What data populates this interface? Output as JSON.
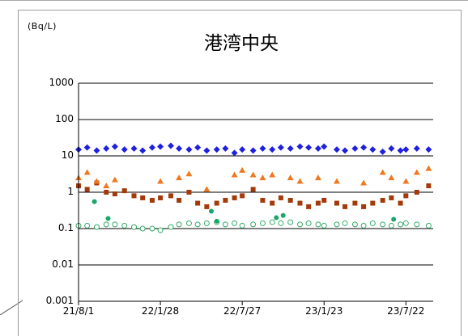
{
  "chart_data": {
    "type": "scatter",
    "title": "港湾中央",
    "unit": "(Bq/L)",
    "y_scale": "log",
    "ylim": [
      0.001,
      1000
    ],
    "yticks": [
      "1000",
      "100",
      "10",
      "1",
      "0.1",
      "0.01",
      "0.001"
    ],
    "xticks": [
      "21/8/1",
      "22/1/28",
      "22/7/27",
      "23/1/23",
      "23/7/22"
    ],
    "xlim": [
      "2021-08-01",
      "2023-09-20"
    ],
    "grid": true,
    "series": [
      {
        "marker": "diamond",
        "color": "#1f1fe0",
        "x": [
          "2021-08-01",
          "2021-08-20",
          "2021-09-10",
          "2021-10-01",
          "2021-10-20",
          "2021-11-10",
          "2021-12-01",
          "2021-12-20",
          "2022-01-10",
          "2022-01-28",
          "2022-02-20",
          "2022-03-10",
          "2022-04-01",
          "2022-04-20",
          "2022-05-10",
          "2022-06-01",
          "2022-06-20",
          "2022-07-10",
          "2022-07-27",
          "2022-08-20",
          "2022-09-10",
          "2022-10-01",
          "2022-10-20",
          "2022-11-10",
          "2022-12-01",
          "2022-12-20",
          "2023-01-10",
          "2023-01-23",
          "2023-02-20",
          "2023-03-10",
          "2023-04-01",
          "2023-04-20",
          "2023-05-10",
          "2023-06-01",
          "2023-06-20",
          "2023-07-10",
          "2023-07-22",
          "2023-08-15",
          "2023-09-10"
        ],
        "values": [
          15,
          17,
          14,
          16,
          18,
          15,
          16,
          14,
          17,
          18,
          19,
          16,
          15,
          17,
          14,
          15,
          16,
          12,
          15,
          14,
          16,
          15,
          17,
          16,
          18,
          17,
          16,
          18,
          15,
          14,
          16,
          17,
          15,
          13,
          16,
          14,
          15,
          16,
          15
        ]
      },
      {
        "marker": "square",
        "color": "#a33a0a",
        "x": [
          "2021-08-01",
          "2021-08-20",
          "2021-09-10",
          "2021-10-01",
          "2021-10-20",
          "2021-11-10",
          "2021-12-01",
          "2021-12-20",
          "2022-01-10",
          "2022-01-28",
          "2022-02-20",
          "2022-03-10",
          "2022-04-01",
          "2022-04-20",
          "2022-05-10",
          "2022-06-01",
          "2022-06-20",
          "2022-07-10",
          "2022-07-27",
          "2022-08-20",
          "2022-09-10",
          "2022-10-01",
          "2022-10-20",
          "2022-11-10",
          "2022-12-01",
          "2022-12-20",
          "2023-01-10",
          "2023-01-23",
          "2023-02-20",
          "2023-03-10",
          "2023-04-01",
          "2023-04-20",
          "2023-05-10",
          "2023-06-01",
          "2023-06-20",
          "2023-07-10",
          "2023-07-22",
          "2023-08-15",
          "2023-09-10"
        ],
        "values": [
          1.5,
          1.2,
          1.8,
          1.0,
          0.9,
          1.1,
          0.8,
          0.7,
          0.6,
          0.7,
          0.8,
          0.6,
          1.0,
          0.5,
          0.4,
          0.5,
          0.6,
          0.7,
          0.8,
          1.2,
          0.6,
          0.5,
          0.7,
          0.6,
          0.5,
          0.4,
          0.5,
          0.6,
          0.5,
          0.4,
          0.5,
          0.4,
          0.5,
          0.6,
          0.7,
          0.5,
          0.8,
          1.0,
          1.5
        ]
      },
      {
        "marker": "triangle",
        "color": "#f07820",
        "x": [
          "2021-08-01",
          "2021-08-20",
          "2021-09-10",
          "2021-10-01",
          "2021-10-20",
          "2022-01-28",
          "2022-03-10",
          "2022-04-01",
          "2022-05-10",
          "2022-07-10",
          "2022-07-27",
          "2022-08-20",
          "2022-09-10",
          "2022-10-01",
          "2022-11-10",
          "2022-12-01",
          "2023-01-10",
          "2023-02-20",
          "2023-04-20",
          "2023-06-01",
          "2023-06-20",
          "2023-07-22",
          "2023-08-15",
          "2023-09-10"
        ],
        "values": [
          2.5,
          3.5,
          2.0,
          1.5,
          2.2,
          2.0,
          2.5,
          3.2,
          1.2,
          3.0,
          4.0,
          3.0,
          2.5,
          3.0,
          2.5,
          2.0,
          2.5,
          2.0,
          1.8,
          3.5,
          2.5,
          2.0,
          3.5,
          4.5
        ]
      },
      {
        "marker": "circle-open",
        "color": "#33aa66",
        "x": [
          "2021-08-01",
          "2021-08-20",
          "2021-09-10",
          "2021-10-01",
          "2021-10-20",
          "2021-11-10",
          "2021-12-01",
          "2021-12-20",
          "2022-01-10",
          "2022-01-28",
          "2022-02-20",
          "2022-03-10",
          "2022-04-01",
          "2022-04-20",
          "2022-05-10",
          "2022-06-01",
          "2022-06-20",
          "2022-07-10",
          "2022-07-27",
          "2022-08-20",
          "2022-09-10",
          "2022-10-01",
          "2022-10-20",
          "2022-11-10",
          "2022-12-01",
          "2022-12-20",
          "2023-01-10",
          "2023-01-23",
          "2023-02-20",
          "2023-03-10",
          "2023-04-01",
          "2023-04-20",
          "2023-05-10",
          "2023-06-01",
          "2023-06-20",
          "2023-07-10",
          "2023-07-22",
          "2023-08-15",
          "2023-09-10"
        ],
        "values": [
          0.12,
          0.12,
          0.11,
          0.13,
          0.13,
          0.12,
          0.11,
          0.1,
          0.1,
          0.09,
          0.11,
          0.13,
          0.14,
          0.13,
          0.14,
          0.15,
          0.13,
          0.14,
          0.12,
          0.13,
          0.14,
          0.15,
          0.14,
          0.15,
          0.13,
          0.14,
          0.13,
          0.12,
          0.13,
          0.14,
          0.13,
          0.12,
          0.14,
          0.13,
          0.12,
          0.13,
          0.14,
          0.13,
          0.12
        ]
      },
      {
        "marker": "circle-filled",
        "color": "#1aa86a",
        "x": [
          "2021-09-05",
          "2021-10-05",
          "2022-05-20",
          "2022-06-01",
          "2022-10-10",
          "2022-10-25",
          "2023-06-25"
        ],
        "values": [
          0.55,
          0.19,
          0.3,
          0.16,
          0.2,
          0.23,
          0.18
        ]
      }
    ]
  }
}
